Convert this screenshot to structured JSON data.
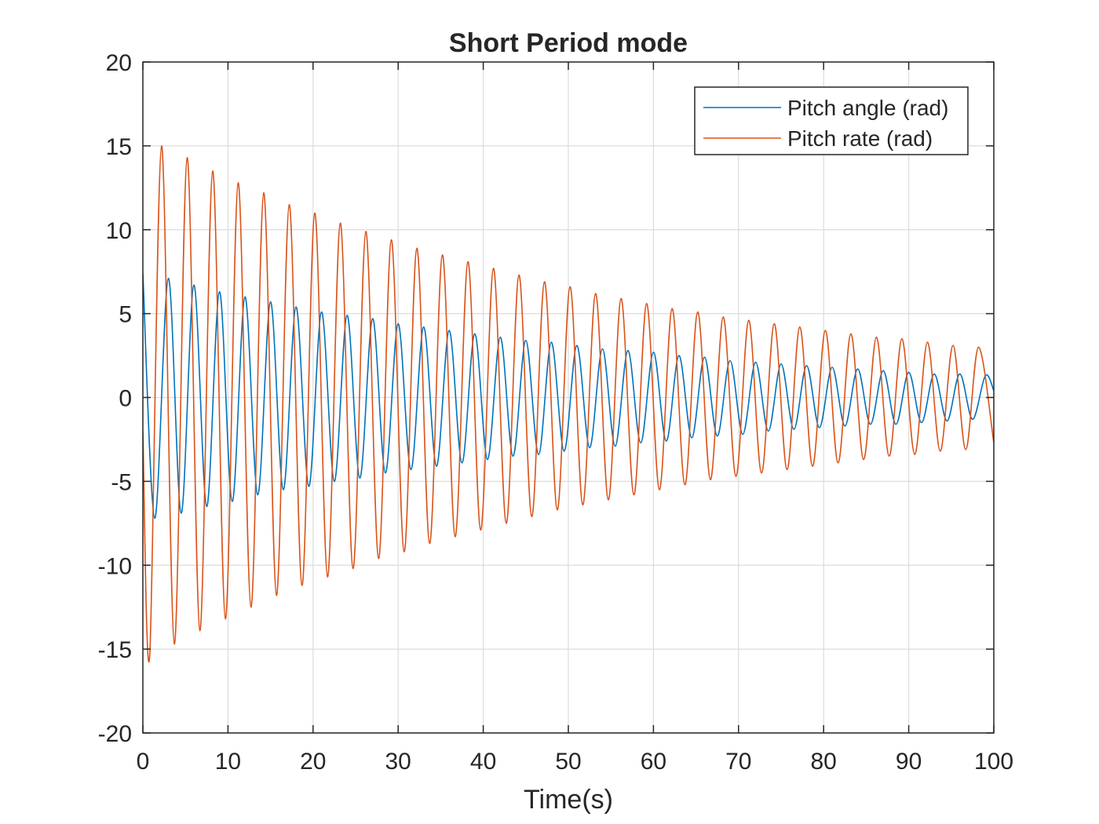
{
  "chart_data": {
    "type": "line",
    "title": "Short Period mode",
    "xlabel": "Time(s)",
    "ylabel": "",
    "xlim": [
      0,
      100
    ],
    "ylim": [
      -20,
      20
    ],
    "xticks": [
      0,
      10,
      20,
      30,
      40,
      50,
      60,
      70,
      80,
      90,
      100
    ],
    "yticks": [
      -20,
      -15,
      -10,
      -5,
      0,
      5,
      10,
      15,
      20
    ],
    "xtick_labels": [
      "0",
      "10",
      "20",
      "30",
      "40",
      "50",
      "60",
      "70",
      "80",
      "90",
      "100"
    ],
    "ytick_labels": [
      "-20",
      "-15",
      "-10",
      "-5",
      "0",
      "5",
      "10",
      "15",
      "20"
    ],
    "grid": true,
    "legend_position": "top-right",
    "series": [
      {
        "name": "Pitch angle (rad)",
        "color": "#0072BD",
        "x": [
          0,
          1.4,
          3,
          4.5,
          6,
          7.5,
          9,
          10.5,
          12,
          13.5,
          15,
          16.5,
          18,
          19.5,
          21,
          22.5,
          24,
          25.5,
          27,
          28.5,
          30,
          31.5,
          33,
          34.5,
          36,
          37.5,
          39,
          40.5,
          42,
          43.5,
          45,
          46.5,
          48,
          49.5,
          51,
          52.5,
          54,
          55.5,
          57,
          58.5,
          60,
          61.5,
          63,
          64.5,
          66,
          67.5,
          69,
          70.5,
          72,
          73.5,
          75,
          76.5,
          78,
          79.5,
          81,
          82.5,
          84,
          85.5,
          87,
          88.5,
          90,
          91.5,
          93,
          94.5,
          96,
          97.5,
          99,
          100
        ],
        "y": [
          7.4,
          -7.2,
          7.1,
          -6.9,
          6.7,
          -6.5,
          6.3,
          -6.2,
          6.0,
          -5.8,
          5.7,
          -5.5,
          5.4,
          -5.3,
          5.1,
          -5.0,
          4.9,
          -4.8,
          4.7,
          -4.5,
          4.4,
          -4.3,
          4.2,
          -4.1,
          4.0,
          -3.9,
          3.8,
          -3.7,
          3.6,
          -3.5,
          3.4,
          -3.4,
          3.3,
          -3.2,
          3.1,
          -3.0,
          2.9,
          -2.9,
          2.8,
          -2.7,
          2.7,
          -2.6,
          2.5,
          -2.4,
          2.4,
          -2.3,
          2.2,
          -2.2,
          2.1,
          -2.0,
          2.0,
          -1.9,
          1.9,
          -1.8,
          1.8,
          -1.7,
          1.7,
          -1.6,
          1.6,
          -1.6,
          1.5,
          -1.5,
          1.4,
          -1.4,
          1.4,
          -1.3,
          1.3,
          0.4
        ]
      },
      {
        "name": "Pitch rate (rad)",
        "color": "#D95319",
        "x": [
          0,
          0.8,
          2.2,
          3.7,
          5.2,
          6.7,
          8.2,
          9.7,
          11.2,
          12.7,
          14.2,
          15.7,
          17.2,
          18.7,
          20.2,
          21.7,
          23.2,
          24.7,
          26.2,
          27.7,
          29.2,
          30.7,
          32.2,
          33.7,
          35.2,
          36.7,
          38.2,
          39.7,
          41.2,
          42.7,
          44.2,
          45.7,
          47.2,
          48.7,
          50.2,
          51.7,
          53.2,
          54.7,
          56.2,
          57.7,
          59.2,
          60.7,
          62.2,
          63.7,
          65.2,
          66.7,
          68.2,
          69.7,
          71.2,
          72.7,
          74.2,
          75.7,
          77.2,
          78.7,
          80.2,
          81.7,
          83.2,
          84.7,
          86.2,
          87.7,
          89.2,
          90.7,
          92.2,
          93.7,
          95.2,
          96.7,
          98.2,
          100
        ],
        "y": [
          -2.0,
          -15.4,
          15.0,
          -14.7,
          14.3,
          -13.9,
          13.5,
          -13.2,
          12.8,
          -12.5,
          12.2,
          -11.8,
          11.5,
          -11.2,
          11.0,
          -10.7,
          10.4,
          -10.2,
          9.9,
          -9.6,
          9.4,
          -9.2,
          8.9,
          -8.7,
          8.5,
          -8.3,
          8.1,
          -7.9,
          7.7,
          -7.5,
          7.3,
          -7.1,
          6.9,
          -6.7,
          6.6,
          -6.4,
          6.2,
          -6.1,
          5.9,
          -5.8,
          5.6,
          -5.5,
          5.3,
          -5.2,
          5.1,
          -4.9,
          4.8,
          -4.7,
          4.6,
          -4.5,
          4.4,
          -4.3,
          4.2,
          -4.1,
          4.0,
          -3.9,
          3.8,
          -3.7,
          3.6,
          -3.5,
          3.5,
          -3.4,
          3.3,
          -3.2,
          3.1,
          -3.1,
          3.0,
          -2.7
        ]
      }
    ]
  }
}
